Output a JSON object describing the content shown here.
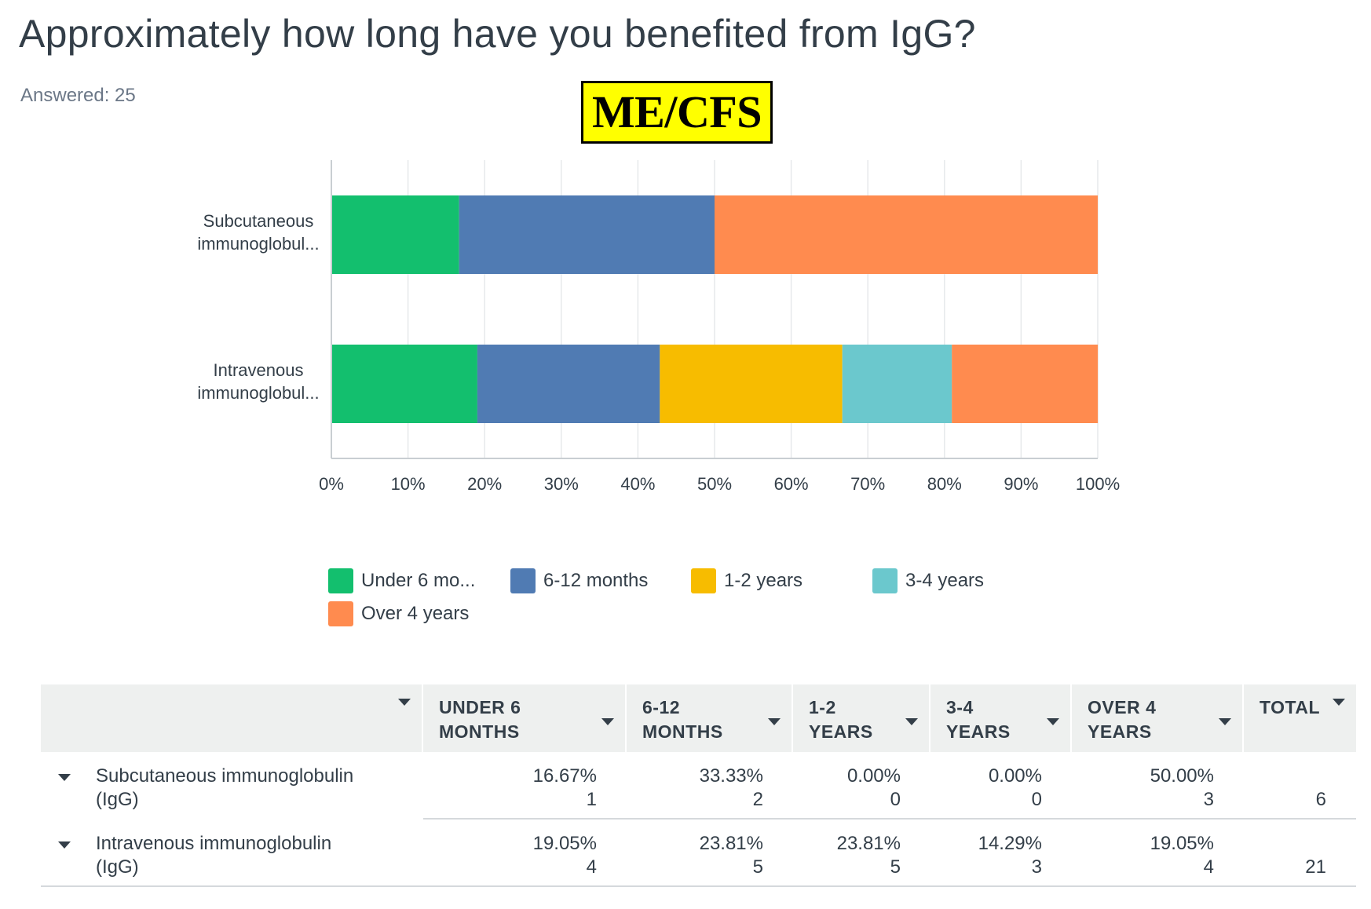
{
  "page": {
    "title": "Approximately how long have you benefited from IgG?",
    "answered": "Answered: 25",
    "badge": "ME/CFS"
  },
  "chart_data": {
    "type": "bar",
    "orientation": "horizontal",
    "stacked": "percent",
    "categories": [
      "Subcutaneous immunoglobul...",
      "Intravenous immunoglobul..."
    ],
    "category_lines": [
      [
        "Subcutaneous",
        "immunoglobul..."
      ],
      [
        "Intravenous",
        "immunoglobul..."
      ]
    ],
    "series": [
      {
        "name": "Under 6 mo...",
        "color": "#13bf6e",
        "values": [
          16.67,
          19.05
        ]
      },
      {
        "name": "6-12 months",
        "color": "#507bb3",
        "values": [
          33.33,
          23.81
        ]
      },
      {
        "name": "1-2 years",
        "color": "#f7bc00",
        "values": [
          0.0,
          23.81
        ]
      },
      {
        "name": "3-4 years",
        "color": "#6bc8cd",
        "values": [
          0.0,
          14.29
        ]
      },
      {
        "name": "Over 4 years",
        "color": "#ff8b4f",
        "values": [
          50.0,
          19.05
        ]
      }
    ],
    "xlim": [
      0,
      100
    ],
    "xticks": [
      "0%",
      "10%",
      "20%",
      "30%",
      "40%",
      "50%",
      "60%",
      "70%",
      "80%",
      "90%",
      "100%"
    ],
    "grid": true,
    "legend_position": "bottom"
  },
  "table": {
    "headers": [
      {
        "lines": [
          "",
          ""
        ]
      },
      {
        "lines": [
          "UNDER 6",
          "MONTHS"
        ]
      },
      {
        "lines": [
          "6-12",
          "MONTHS"
        ]
      },
      {
        "lines": [
          "1-2",
          "YEARS"
        ]
      },
      {
        "lines": [
          "3-4",
          "YEARS"
        ]
      },
      {
        "lines": [
          "OVER 4",
          "YEARS"
        ]
      },
      {
        "lines": [
          "TOTAL",
          ""
        ]
      }
    ],
    "rows": [
      {
        "label_lines": [
          "Subcutaneous immunoglobulin",
          "(IgG)"
        ],
        "cells": [
          {
            "pct": "16.67%",
            "count": "1"
          },
          {
            "pct": "33.33%",
            "count": "2"
          },
          {
            "pct": "0.00%",
            "count": "0"
          },
          {
            "pct": "0.00%",
            "count": "0"
          },
          {
            "pct": "50.00%",
            "count": "3"
          }
        ],
        "total": "6"
      },
      {
        "label_lines": [
          "Intravenous immunoglobulin",
          "(IgG)"
        ],
        "cells": [
          {
            "pct": "19.05%",
            "count": "4"
          },
          {
            "pct": "23.81%",
            "count": "5"
          },
          {
            "pct": "23.81%",
            "count": "5"
          },
          {
            "pct": "14.29%",
            "count": "3"
          },
          {
            "pct": "19.05%",
            "count": "4"
          }
        ],
        "total": "21"
      }
    ]
  }
}
